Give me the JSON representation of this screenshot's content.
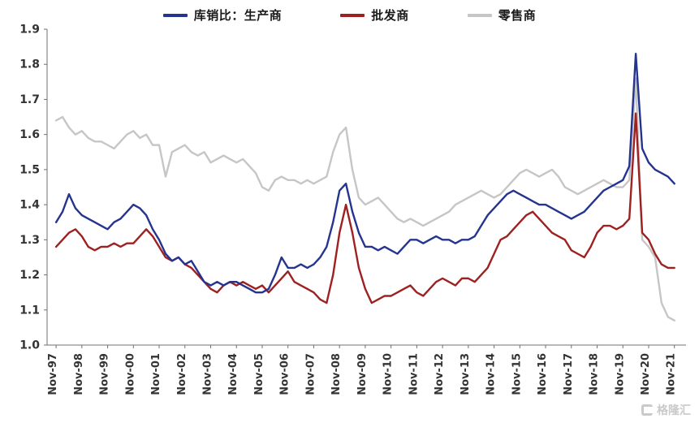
{
  "chart_data": {
    "type": "line",
    "title": "",
    "xlabel": "",
    "ylabel": "",
    "grid": false,
    "legend_position": "top",
    "ylim": [
      1.0,
      1.9
    ],
    "y_ticks": [
      1.0,
      1.1,
      1.2,
      1.3,
      1.4,
      1.5,
      1.6,
      1.7,
      1.8,
      1.9
    ],
    "x_tick_labels": [
      "Nov-97",
      "Nov-98",
      "Nov-99",
      "Nov-00",
      "Nov-01",
      "Nov-02",
      "Nov-03",
      "Nov-04",
      "Nov-05",
      "Nov-06",
      "Nov-07",
      "Nov-08",
      "Nov-09",
      "Nov-10",
      "Nov-11",
      "Nov-12",
      "Nov-13",
      "Nov-14",
      "Nov-15",
      "Nov-16",
      "Nov-17",
      "Nov-18",
      "Nov-19",
      "Nov-20",
      "Nov-21"
    ],
    "x_start": 0,
    "x_step_years": 0.25,
    "x_ticks_every_years": 1,
    "series": [
      {
        "name": "库销比：生产商",
        "color": "#24348f",
        "values": [
          1.35,
          1.38,
          1.43,
          1.39,
          1.37,
          1.36,
          1.35,
          1.34,
          1.33,
          1.35,
          1.36,
          1.38,
          1.4,
          1.39,
          1.37,
          1.33,
          1.3,
          1.26,
          1.24,
          1.25,
          1.23,
          1.24,
          1.21,
          1.18,
          1.17,
          1.18,
          1.17,
          1.18,
          1.18,
          1.17,
          1.16,
          1.15,
          1.15,
          1.16,
          1.2,
          1.25,
          1.22,
          1.22,
          1.23,
          1.22,
          1.23,
          1.25,
          1.28,
          1.35,
          1.44,
          1.46,
          1.38,
          1.32,
          1.28,
          1.28,
          1.27,
          1.28,
          1.27,
          1.26,
          1.28,
          1.3,
          1.3,
          1.29,
          1.3,
          1.31,
          1.3,
          1.3,
          1.29,
          1.3,
          1.3,
          1.31,
          1.34,
          1.37,
          1.39,
          1.41,
          1.43,
          1.44,
          1.43,
          1.42,
          1.41,
          1.4,
          1.4,
          1.39,
          1.38,
          1.37,
          1.36,
          1.37,
          1.38,
          1.4,
          1.42,
          1.44,
          1.45,
          1.46,
          1.47,
          1.51,
          1.83,
          1.56,
          1.52,
          1.5,
          1.49,
          1.48,
          1.46
        ]
      },
      {
        "name": "批发商",
        "color": "#9e2121",
        "values": [
          1.28,
          1.3,
          1.32,
          1.33,
          1.31,
          1.28,
          1.27,
          1.28,
          1.28,
          1.29,
          1.28,
          1.29,
          1.29,
          1.31,
          1.33,
          1.31,
          1.28,
          1.25,
          1.24,
          1.25,
          1.23,
          1.22,
          1.2,
          1.18,
          1.16,
          1.15,
          1.17,
          1.18,
          1.17,
          1.18,
          1.17,
          1.16,
          1.17,
          1.15,
          1.17,
          1.19,
          1.21,
          1.18,
          1.17,
          1.16,
          1.15,
          1.13,
          1.12,
          1.2,
          1.32,
          1.4,
          1.32,
          1.22,
          1.16,
          1.12,
          1.13,
          1.14,
          1.14,
          1.15,
          1.16,
          1.17,
          1.15,
          1.14,
          1.16,
          1.18,
          1.19,
          1.18,
          1.17,
          1.19,
          1.19,
          1.18,
          1.2,
          1.22,
          1.26,
          1.3,
          1.31,
          1.33,
          1.35,
          1.37,
          1.38,
          1.36,
          1.34,
          1.32,
          1.31,
          1.3,
          1.27,
          1.26,
          1.25,
          1.28,
          1.32,
          1.34,
          1.34,
          1.33,
          1.34,
          1.36,
          1.66,
          1.32,
          1.3,
          1.26,
          1.23,
          1.22,
          1.22
        ]
      },
      {
        "name": "零售商",
        "color": "#c6c6c6",
        "values": [
          1.64,
          1.65,
          1.62,
          1.6,
          1.61,
          1.59,
          1.58,
          1.58,
          1.57,
          1.56,
          1.58,
          1.6,
          1.61,
          1.59,
          1.6,
          1.57,
          1.57,
          1.48,
          1.55,
          1.56,
          1.57,
          1.55,
          1.54,
          1.55,
          1.52,
          1.53,
          1.54,
          1.53,
          1.52,
          1.53,
          1.51,
          1.49,
          1.45,
          1.44,
          1.47,
          1.48,
          1.47,
          1.47,
          1.46,
          1.47,
          1.46,
          1.47,
          1.48,
          1.55,
          1.6,
          1.62,
          1.5,
          1.42,
          1.4,
          1.41,
          1.42,
          1.4,
          1.38,
          1.36,
          1.35,
          1.36,
          1.35,
          1.34,
          1.35,
          1.36,
          1.37,
          1.38,
          1.4,
          1.41,
          1.42,
          1.43,
          1.44,
          1.43,
          1.42,
          1.43,
          1.45,
          1.47,
          1.49,
          1.5,
          1.49,
          1.48,
          1.49,
          1.5,
          1.48,
          1.45,
          1.44,
          1.43,
          1.44,
          1.45,
          1.46,
          1.47,
          1.46,
          1.45,
          1.45,
          1.47,
          1.76,
          1.3,
          1.28,
          1.25,
          1.12,
          1.08,
          1.07
        ]
      }
    ]
  },
  "watermark": {
    "text": "格隆汇"
  }
}
